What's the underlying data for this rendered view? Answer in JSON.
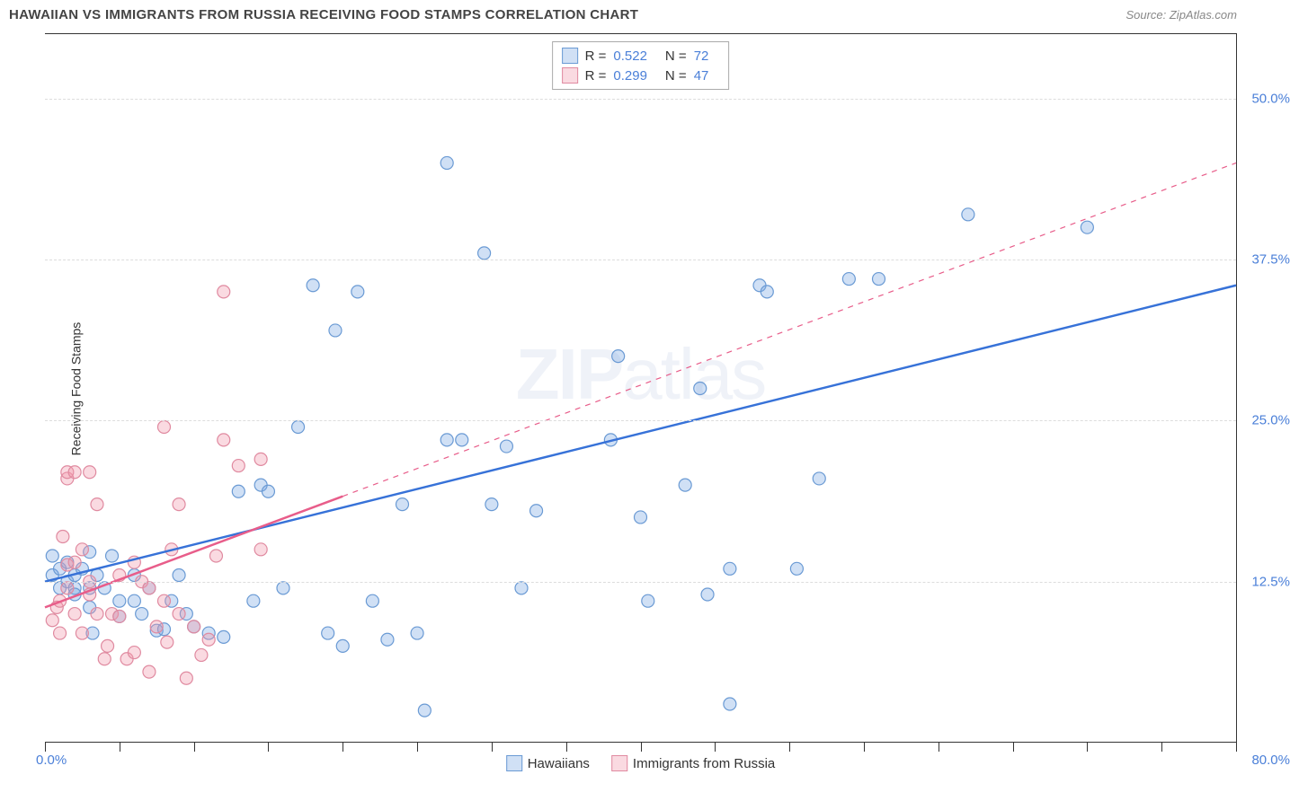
{
  "header": {
    "title": "HAWAIIAN VS IMMIGRANTS FROM RUSSIA RECEIVING FOOD STAMPS CORRELATION CHART",
    "source_prefix": "Source: ",
    "source": "ZipAtlas.com"
  },
  "chart": {
    "type": "scatter",
    "xlim": [
      0,
      80
    ],
    "ylim": [
      0,
      55
    ],
    "x_label_min": "0.0%",
    "x_label_max": "80.0%",
    "y_ticks": [
      12.5,
      25.0,
      37.5,
      50.0
    ],
    "y_tick_labels": [
      "12.5%",
      "25.0%",
      "37.5%",
      "50.0%"
    ],
    "x_ticks": [
      0,
      5,
      10,
      15,
      20,
      25,
      30,
      35,
      40,
      45,
      50,
      55,
      60,
      65,
      70,
      75,
      80
    ],
    "ylabel": "Receiving Food Stamps",
    "background_color": "#ffffff",
    "grid_color": "#dddddd",
    "axis_color": "#333333",
    "tick_label_color": "#4a7fd8",
    "marker_radius": 7,
    "marker_stroke_width": 1.2,
    "trend_line_width": 2.5,
    "watermark": "ZIPatlas",
    "series": [
      {
        "name": "Hawaiians",
        "color_fill": "rgba(120,165,225,0.35)",
        "color_stroke": "#6a9ad4",
        "trend_color": "#3772d8",
        "trend_style": "solid",
        "trend": {
          "x1": 0,
          "y1": 12.5,
          "x2": 80,
          "y2": 35.5,
          "dash_x1": null
        },
        "R": "0.522",
        "N": "72",
        "points": [
          [
            0.5,
            13
          ],
          [
            1,
            12
          ],
          [
            1,
            13.5
          ],
          [
            1.5,
            14
          ],
          [
            1.5,
            12.5
          ],
          [
            2,
            12
          ],
          [
            2,
            13
          ],
          [
            2,
            11.5
          ],
          [
            2.5,
            13.5
          ],
          [
            3,
            14.8
          ],
          [
            3,
            12
          ],
          [
            3,
            10.5
          ],
          [
            3.2,
            8.5
          ],
          [
            3.5,
            13
          ],
          [
            4,
            12
          ],
          [
            4.5,
            14.5
          ],
          [
            5,
            11
          ],
          [
            5,
            9.8
          ],
          [
            6,
            11
          ],
          [
            6,
            13
          ],
          [
            6.5,
            10
          ],
          [
            7,
            12
          ],
          [
            7.5,
            8.7
          ],
          [
            8,
            8.8
          ],
          [
            8.5,
            11
          ],
          [
            9,
            13
          ],
          [
            9.5,
            10
          ],
          [
            10,
            9
          ],
          [
            11,
            8.5
          ],
          [
            12,
            8.2
          ],
          [
            13,
            19.5
          ],
          [
            14,
            11
          ],
          [
            14.5,
            20
          ],
          [
            15,
            19.5
          ],
          [
            16,
            12
          ],
          [
            17,
            24.5
          ],
          [
            18,
            35.5
          ],
          [
            19,
            8.5
          ],
          [
            19.5,
            32
          ],
          [
            20,
            7.5
          ],
          [
            21,
            35
          ],
          [
            22,
            11
          ],
          [
            23,
            8
          ],
          [
            24,
            18.5
          ],
          [
            25,
            8.5
          ],
          [
            25.5,
            2.5
          ],
          [
            27,
            23.5
          ],
          [
            27,
            45
          ],
          [
            28,
            23.5
          ],
          [
            29.5,
            38
          ],
          [
            30,
            18.5
          ],
          [
            31,
            23
          ],
          [
            32,
            12
          ],
          [
            33,
            18
          ],
          [
            38,
            23.5
          ],
          [
            38.5,
            30
          ],
          [
            40,
            17.5
          ],
          [
            40.5,
            11
          ],
          [
            43,
            20
          ],
          [
            44,
            27.5
          ],
          [
            44.5,
            11.5
          ],
          [
            46,
            13.5
          ],
          [
            46,
            3
          ],
          [
            48,
            35.5
          ],
          [
            48.5,
            35
          ],
          [
            50.5,
            13.5
          ],
          [
            52,
            20.5
          ],
          [
            54,
            36
          ],
          [
            56,
            36
          ],
          [
            62,
            41
          ],
          [
            70,
            40
          ],
          [
            0.5,
            14.5
          ]
        ]
      },
      {
        "name": "Immigrants from Russia",
        "color_fill": "rgba(240,150,170,0.35)",
        "color_stroke": "#e08aa0",
        "trend_color": "#e85d8a",
        "trend_style": "solid-then-dashed",
        "trend": {
          "x1": 0,
          "y1": 10.5,
          "x2": 80,
          "y2": 45,
          "dash_x1": 20
        },
        "R": "0.299",
        "N": "47",
        "points": [
          [
            0.5,
            9.5
          ],
          [
            0.8,
            10.5
          ],
          [
            1,
            11
          ],
          [
            1,
            8.5
          ],
          [
            1.2,
            16
          ],
          [
            1.5,
            12
          ],
          [
            1.5,
            13.8
          ],
          [
            1.5,
            20.5
          ],
          [
            1.5,
            21
          ],
          [
            2,
            10
          ],
          [
            2,
            21
          ],
          [
            2,
            14
          ],
          [
            2.5,
            15
          ],
          [
            2.5,
            8.5
          ],
          [
            3,
            11.5
          ],
          [
            3,
            12.5
          ],
          [
            3,
            21
          ],
          [
            3.5,
            18.5
          ],
          [
            3.5,
            10
          ],
          [
            4,
            6.5
          ],
          [
            4.2,
            7.5
          ],
          [
            4.5,
            10
          ],
          [
            5,
            13
          ],
          [
            5,
            9.8
          ],
          [
            5.5,
            6.5
          ],
          [
            6,
            7
          ],
          [
            6,
            14
          ],
          [
            6.5,
            12.5
          ],
          [
            7,
            12
          ],
          [
            7,
            5.5
          ],
          [
            7.5,
            9
          ],
          [
            8,
            11
          ],
          [
            8,
            24.5
          ],
          [
            8.2,
            7.8
          ],
          [
            8.5,
            15
          ],
          [
            9,
            10
          ],
          [
            9,
            18.5
          ],
          [
            9.5,
            5
          ],
          [
            10,
            9
          ],
          [
            10.5,
            6.8
          ],
          [
            11,
            8
          ],
          [
            11.5,
            14.5
          ],
          [
            12,
            35
          ],
          [
            12,
            23.5
          ],
          [
            13,
            21.5
          ],
          [
            14.5,
            22
          ],
          [
            14.5,
            15
          ]
        ]
      }
    ],
    "legend_top": {
      "rows": [
        {
          "swatch_fill": "rgba(120,165,225,0.35)",
          "swatch_stroke": "#6a9ad4",
          "r_label": "R =",
          "r_val": "0.522",
          "n_label": "N =",
          "n_val": "72"
        },
        {
          "swatch_fill": "rgba(240,150,170,0.35)",
          "swatch_stroke": "#e08aa0",
          "r_label": "R =",
          "r_val": "0.299",
          "n_label": "N =",
          "n_val": "47"
        }
      ]
    },
    "legend_bottom": {
      "items": [
        {
          "swatch_fill": "rgba(120,165,225,0.35)",
          "swatch_stroke": "#6a9ad4",
          "label": "Hawaiians"
        },
        {
          "swatch_fill": "rgba(240,150,170,0.35)",
          "swatch_stroke": "#e08aa0",
          "label": "Immigrants from Russia"
        }
      ]
    }
  }
}
